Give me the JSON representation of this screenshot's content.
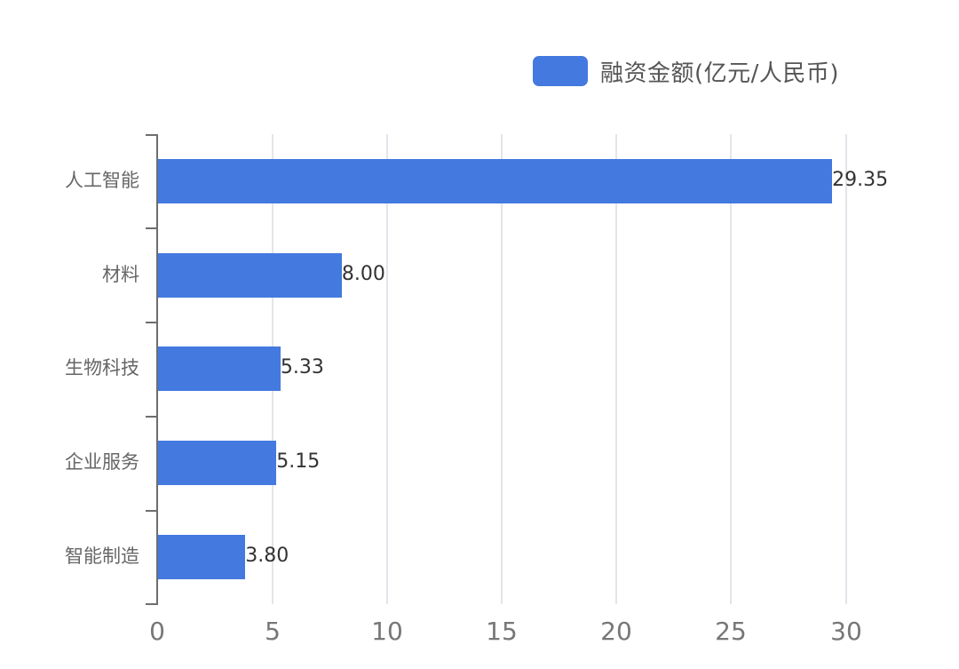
{
  "chart_data": {
    "type": "bar",
    "orientation": "horizontal",
    "title": "",
    "xlabel": "",
    "ylabel": "",
    "categories": [
      "人工智能",
      "材料",
      "生物科技",
      "企业服务",
      "智能制造"
    ],
    "series": [
      {
        "name": "融资金额(亿元/人民币)",
        "color": "#4479e0",
        "values": [
          29.35,
          8.0,
          5.33,
          5.15,
          3.8
        ],
        "value_labels": [
          "29.35",
          "8.00",
          "5.33",
          "5.15",
          "3.80"
        ]
      }
    ],
    "xlim": [
      0,
      30
    ],
    "x_ticks": [
      "0",
      "5",
      "10",
      "15",
      "20",
      "25",
      "30"
    ],
    "grid": {
      "vertical": true,
      "horizontal": false
    },
    "legend": {
      "position": "top-right",
      "entries": [
        "融资金额(亿元/人民币)"
      ]
    },
    "data_labels": true
  },
  "legend": {
    "label": "融资金额(亿元/人民币)",
    "color": "#4479e0"
  },
  "axis": {
    "x_ticks": [
      "0",
      "5",
      "10",
      "15",
      "20",
      "25",
      "30"
    ]
  },
  "bars": [
    {
      "category": "人工智能",
      "value_label": "29.35"
    },
    {
      "category": "材料",
      "value_label": "8.00"
    },
    {
      "category": "生物科技",
      "value_label": "5.33"
    },
    {
      "category": "企业服务",
      "value_label": "5.15"
    },
    {
      "category": "智能制造",
      "value_label": "3.80"
    }
  ]
}
